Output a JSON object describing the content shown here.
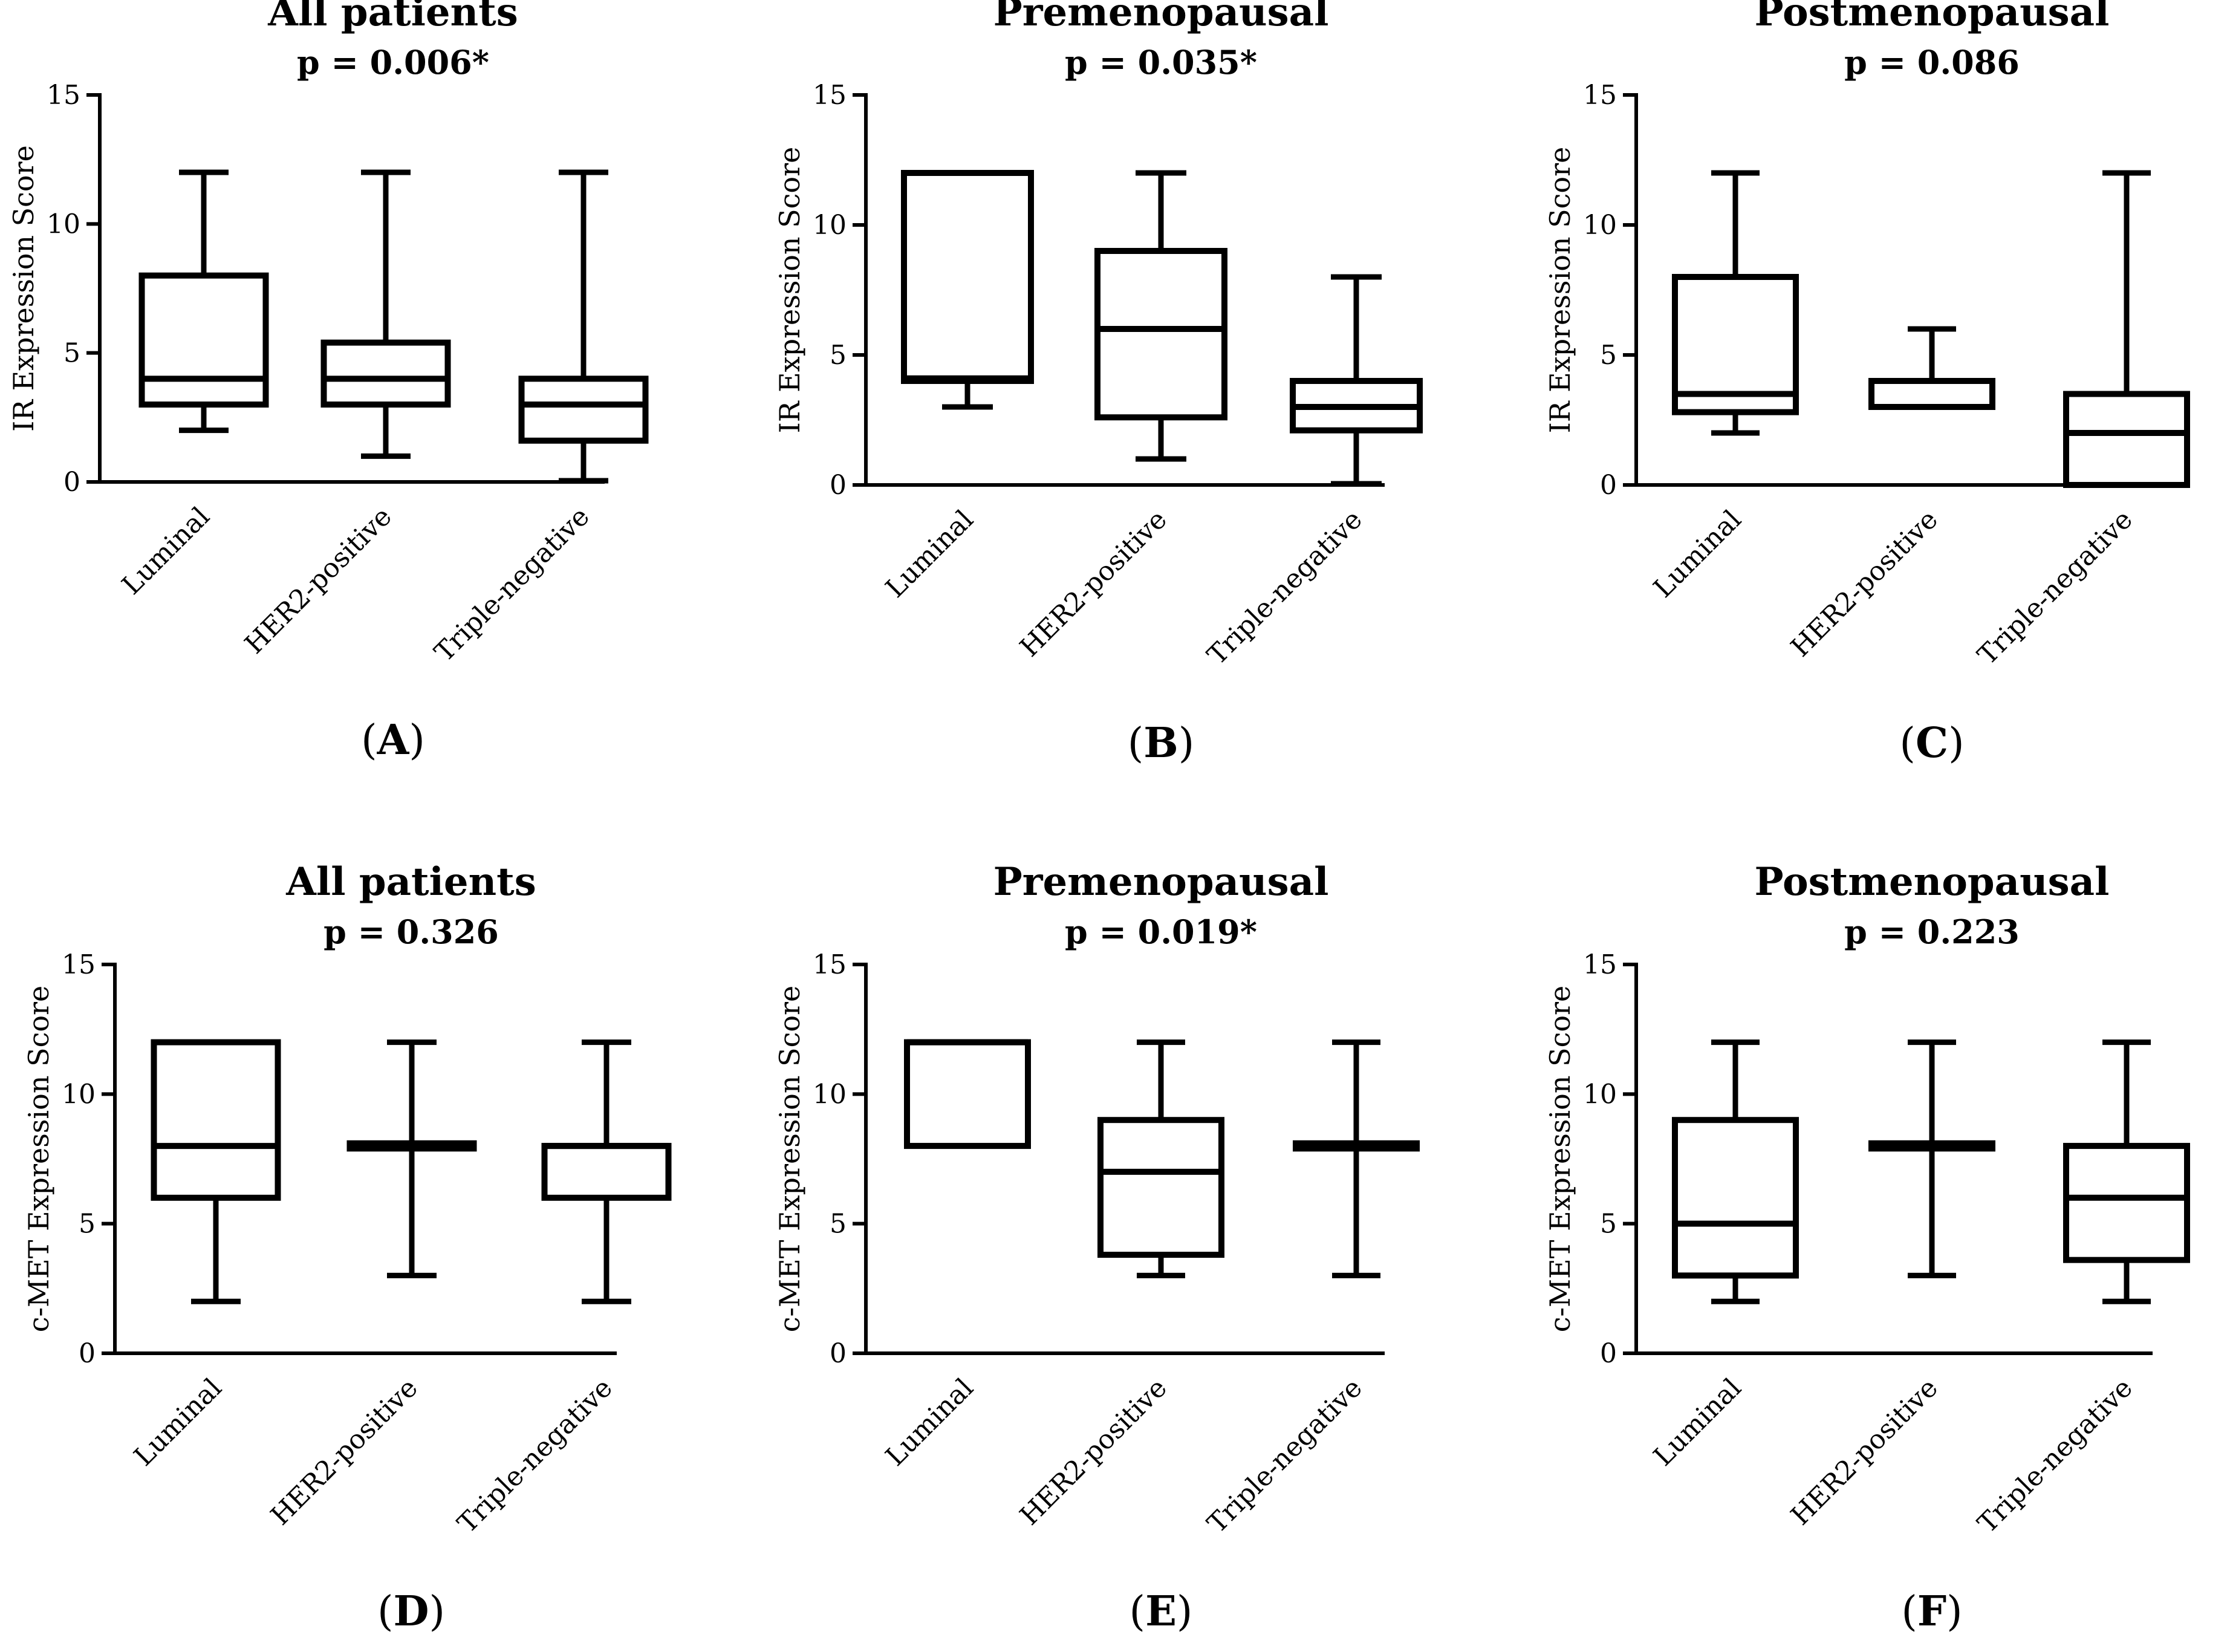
{
  "chart_data": [
    {
      "type": "box",
      "panel_label": "A",
      "title": "All patients",
      "subtitle": "p = 0.006*",
      "ylabel": "IR Expression Score",
      "ylim": [
        0,
        15
      ],
      "yticks": [
        "0",
        "5",
        "10",
        "15"
      ],
      "categories": [
        "Luminal",
        "HER2-positive",
        "Triple-negative"
      ],
      "boxes": [
        {
          "min": 2,
          "q1": 3,
          "median": 4,
          "q3": 8,
          "max": 12
        },
        {
          "min": 1,
          "q1": 3,
          "median": 4,
          "q3": 5.4,
          "max": 12
        },
        {
          "min": 0,
          "q1": 1.6,
          "median": 3,
          "q3": 4,
          "max": 12
        }
      ]
    },
    {
      "type": "box",
      "panel_label": "B",
      "title": "Premenopausal",
      "subtitle": "p = 0.035*",
      "ylabel": "IR Expression Score",
      "ylim": [
        0,
        15
      ],
      "yticks": [
        "0",
        "5",
        "10",
        "15"
      ],
      "categories": [
        "Luminal",
        "HER2-positive",
        "Triple-negative"
      ],
      "boxes": [
        {
          "min": 3,
          "q1": 4,
          "median": 4.1,
          "q3": 12,
          "max": 12
        },
        {
          "min": 1,
          "q1": 2.6,
          "median": 6,
          "q3": 9,
          "max": 12
        },
        {
          "min": 0,
          "q1": 2.1,
          "median": 3,
          "q3": 4,
          "max": 8
        }
      ]
    },
    {
      "type": "box",
      "panel_label": "C",
      "title": "Postmenopausal",
      "subtitle": "p = 0.086",
      "ylabel": "IR Expression Score",
      "ylim": [
        0,
        15
      ],
      "yticks": [
        "0",
        "5",
        "10",
        "15"
      ],
      "categories": [
        "Luminal",
        "HER2-positive",
        "Triple-negative"
      ],
      "boxes": [
        {
          "min": 2,
          "q1": 2.8,
          "median": 3.5,
          "q3": 8,
          "max": 12
        },
        {
          "min": 3,
          "q1": 3,
          "median": 4,
          "q3": 4,
          "max": 6
        },
        {
          "min": 0,
          "q1": 0,
          "median": 2,
          "q3": 3.5,
          "max": 12
        }
      ]
    },
    {
      "type": "box",
      "panel_label": "D",
      "title": "All patients",
      "subtitle": "p = 0.326",
      "ylabel": "c-MET Expression Score",
      "ylim": [
        0,
        15
      ],
      "yticks": [
        "0",
        "5",
        "10",
        "15"
      ],
      "categories": [
        "Luminal",
        "HER2-positive",
        "Triple-negative"
      ],
      "boxes": [
        {
          "min": 2,
          "q1": 6,
          "median": 8,
          "q3": 12,
          "max": 12
        },
        {
          "min": 3,
          "q1": 7.9,
          "median": 8,
          "q3": 8.1,
          "max": 12
        },
        {
          "min": 2,
          "q1": 6,
          "median": 8,
          "q3": 8,
          "max": 12
        }
      ]
    },
    {
      "type": "box",
      "panel_label": "E",
      "title": "Premenopausal",
      "subtitle": "p = 0.019*",
      "ylabel": "c-MET Expression Score",
      "ylim": [
        0,
        15
      ],
      "yticks": [
        "0",
        "5",
        "10",
        "15"
      ],
      "categories": [
        "Luminal",
        "HER2-positive",
        "Triple-negative"
      ],
      "boxes": [
        {
          "min": 8,
          "q1": 8,
          "median": 12,
          "q3": 12,
          "max": 12
        },
        {
          "min": 3,
          "q1": 3.8,
          "median": 7,
          "q3": 9,
          "max": 12
        },
        {
          "min": 3,
          "q1": 7.9,
          "median": 8,
          "q3": 8.1,
          "max": 12
        }
      ]
    },
    {
      "type": "box",
      "panel_label": "F",
      "title": "Postmenopausal",
      "subtitle": "p = 0.223",
      "ylabel": "c-MET Expression Score",
      "ylim": [
        0,
        15
      ],
      "yticks": [
        "0",
        "5",
        "10",
        "15"
      ],
      "categories": [
        "Luminal",
        "HER2-positive",
        "Triple-negative"
      ],
      "boxes": [
        {
          "min": 2,
          "q1": 3,
          "median": 5,
          "q3": 9,
          "max": 12
        },
        {
          "min": 3,
          "q1": 7.9,
          "median": 8,
          "q3": 8.1,
          "max": 12
        },
        {
          "min": 2,
          "q1": 3.6,
          "median": 6,
          "q3": 8,
          "max": 12
        }
      ]
    }
  ]
}
